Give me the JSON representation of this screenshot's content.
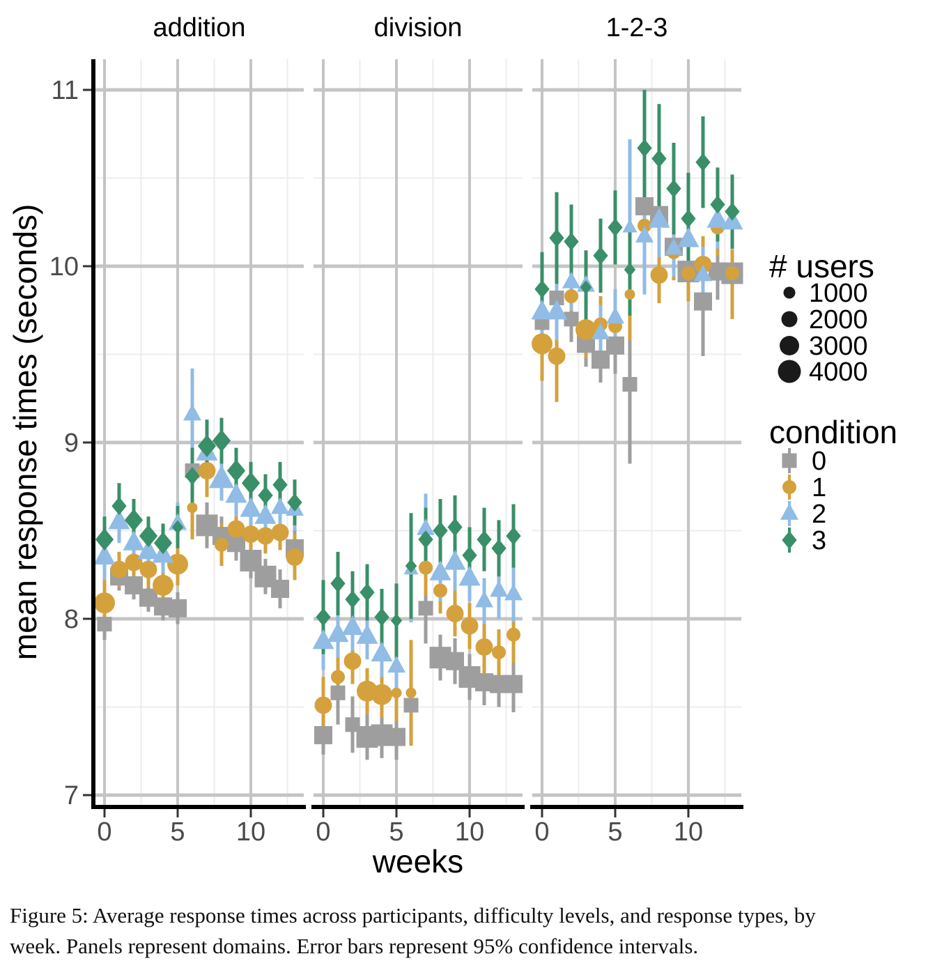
{
  "figure": {
    "caption_line1": "Figure 5: Average response times across participants, difficulty levels, and response types, by",
    "caption_line2": "week. Panels represent domains. Error bars represent 95% confidence intervals."
  },
  "chart_data": {
    "type": "scatter",
    "title": "",
    "xlabel": "weeks",
    "ylabel": "mean response times (seconds)",
    "facets": [
      "addition",
      "division",
      "1-2-3"
    ],
    "weeks": [
      0,
      1,
      2,
      3,
      4,
      5,
      6,
      7,
      8,
      9,
      10,
      11,
      12,
      13
    ],
    "x_ticks": [
      0,
      5,
      10
    ],
    "y_ticks": [
      7,
      8,
      9,
      10,
      11
    ],
    "y_minor_ticks": [
      7.5,
      8.5,
      9.5,
      10.5
    ],
    "x_minor_ticks": [
      2.5,
      7.5,
      12.5
    ],
    "ylim": [
      6.95,
      11.25
    ],
    "xlim": [
      -0.7,
      13.6
    ],
    "grid": "major and minor, light gray on white",
    "legend_position": "right",
    "size_legend": {
      "title": "# users",
      "values": [
        1000,
        2000,
        3000,
        4000
      ]
    },
    "condition_legend": {
      "title": "condition",
      "items": [
        {
          "label": "0",
          "shape": "square",
          "color": "#9E9E9E"
        },
        {
          "label": "1",
          "shape": "circle",
          "color": "#D4A13C"
        },
        {
          "label": "2",
          "shape": "triangle",
          "color": "#90BCE5"
        },
        {
          "label": "3",
          "shape": "diamond",
          "color": "#398F68"
        }
      ]
    },
    "colors": {
      "grid_major": "#C4C4C4",
      "grid_minor": "#ECECEC",
      "axis": "#000000",
      "tick": "#333333",
      "tick_label": "#4A4A4A",
      "text": "#000000"
    },
    "series": [
      {
        "facet": "addition",
        "condition": "0",
        "shape": "square",
        "color": "#9E9E9E",
        "values": [
          7.97,
          8.24,
          8.19,
          8.12,
          8.07,
          8.06,
          8.84,
          8.53,
          8.47,
          8.43,
          8.33,
          8.24,
          8.17,
          8.4
        ],
        "ci": [
          0.09,
          0.08,
          0.08,
          0.08,
          0.08,
          0.09,
          0.25,
          0.13,
          0.11,
          0.1,
          0.1,
          0.1,
          0.11,
          0.13
        ],
        "users": [
          2000,
          3000,
          3000,
          3000,
          3000,
          3000,
          2000,
          4000,
          3000,
          3000,
          4000,
          4000,
          3000,
          3000
        ]
      },
      {
        "facet": "addition",
        "condition": "1",
        "shape": "circle",
        "color": "#D4A13C",
        "values": [
          8.09,
          8.28,
          8.32,
          8.28,
          8.19,
          8.31,
          8.63,
          8.84,
          8.42,
          8.51,
          8.48,
          8.47,
          8.49,
          8.35
        ],
        "ci": [
          0.13,
          0.1,
          0.1,
          0.1,
          0.12,
          0.12,
          0.18,
          0.15,
          0.12,
          0.12,
          0.1,
          0.1,
          0.1,
          0.13
        ],
        "users": [
          4000,
          3000,
          3000,
          3000,
          4000,
          4000,
          1000,
          3000,
          2000,
          3000,
          3000,
          3000,
          3000,
          3000
        ]
      },
      {
        "facet": "addition",
        "condition": "2",
        "shape": "triangle",
        "color": "#90BCE5",
        "values": [
          8.35,
          8.55,
          8.43,
          8.38,
          8.36,
          8.54,
          9.16,
          8.94,
          8.79,
          8.7,
          8.62,
          8.58,
          8.63,
          8.62
        ],
        "ci": [
          0.13,
          0.12,
          0.1,
          0.1,
          0.1,
          0.12,
          0.26,
          0.15,
          0.12,
          0.12,
          0.1,
          0.1,
          0.12,
          0.12
        ],
        "users": [
          3000,
          3000,
          3000,
          3000,
          3000,
          2000,
          2000,
          3000,
          4000,
          3000,
          3000,
          3000,
          2000,
          2000
        ]
      },
      {
        "facet": "addition",
        "condition": "3",
        "shape": "diamond",
        "color": "#398F68",
        "values": [
          8.45,
          8.64,
          8.56,
          8.47,
          8.43,
          8.52,
          8.81,
          8.98,
          9.01,
          8.84,
          8.77,
          8.7,
          8.76,
          8.66
        ],
        "ci": [
          0.13,
          0.13,
          0.12,
          0.11,
          0.11,
          0.12,
          0.16,
          0.15,
          0.13,
          0.13,
          0.12,
          0.12,
          0.13,
          0.13
        ],
        "users": [
          3000,
          2000,
          3000,
          3000,
          3000,
          1000,
          2000,
          3000,
          3000,
          3000,
          3000,
          2000,
          2000,
          2000
        ]
      },
      {
        "facet": "division",
        "condition": "0",
        "shape": "square",
        "color": "#9E9E9E",
        "values": [
          7.34,
          7.58,
          7.4,
          7.33,
          7.34,
          7.33,
          7.51,
          8.06,
          7.78,
          7.76,
          7.67,
          7.64,
          7.63,
          7.63
        ],
        "ci": [
          0.11,
          0.18,
          0.16,
          0.13,
          0.13,
          0.13,
          0.13,
          0.2,
          0.13,
          0.13,
          0.13,
          0.13,
          0.13,
          0.16
        ],
        "users": [
          3000,
          2000,
          2000,
          4000,
          4000,
          3000,
          2000,
          2000,
          4000,
          3000,
          4000,
          3000,
          3000,
          3000
        ]
      },
      {
        "facet": "division",
        "condition": "1",
        "shape": "circle",
        "color": "#D4A13C",
        "values": [
          7.51,
          7.67,
          7.76,
          7.59,
          7.57,
          7.58,
          7.58,
          8.29,
          8.16,
          8.03,
          7.96,
          7.84,
          7.81,
          7.91
        ],
        "ci": [
          0.16,
          0.13,
          0.13,
          0.13,
          0.13,
          0.16,
          0.3,
          0.16,
          0.13,
          0.13,
          0.13,
          0.16,
          0.13,
          0.16
        ],
        "users": [
          3000,
          2000,
          3000,
          4000,
          4000,
          1000,
          1000,
          2000,
          2000,
          3000,
          3000,
          3000,
          2000,
          2000
        ]
      },
      {
        "facet": "division",
        "condition": "2",
        "shape": "triangle",
        "color": "#90BCE5",
        "values": [
          7.87,
          7.91,
          7.95,
          7.9,
          7.8,
          7.73,
          8.28,
          8.51,
          8.26,
          8.32,
          8.23,
          8.1,
          8.16,
          8.14
        ],
        "ci": [
          0.16,
          0.13,
          0.13,
          0.13,
          0.13,
          0.16,
          0.3,
          0.2,
          0.16,
          0.16,
          0.13,
          0.13,
          0.16,
          0.16
        ],
        "users": [
          3000,
          3000,
          3000,
          3000,
          3000,
          2000,
          1000,
          2000,
          3000,
          3000,
          3000,
          2000,
          2000,
          2000
        ]
      },
      {
        "facet": "division",
        "condition": "3",
        "shape": "diamond",
        "color": "#398F68",
        "values": [
          8.01,
          8.2,
          8.11,
          8.15,
          8.01,
          7.99,
          8.3,
          8.45,
          8.5,
          8.52,
          8.36,
          8.45,
          8.4,
          8.47
        ],
        "ci": [
          0.21,
          0.18,
          0.16,
          0.16,
          0.16,
          0.21,
          0.3,
          0.18,
          0.18,
          0.18,
          0.16,
          0.18,
          0.16,
          0.18
        ],
        "users": [
          2000,
          2000,
          2000,
          2000,
          2000,
          1000,
          1000,
          2000,
          2000,
          2000,
          2000,
          2000,
          2000,
          2000
        ]
      },
      {
        "facet": "1-2-3",
        "condition": "0",
        "shape": "square",
        "color": "#9E9E9E",
        "values": [
          9.68,
          9.82,
          9.7,
          9.56,
          9.47,
          9.55,
          9.33,
          10.34,
          10.29,
          10.11,
          9.97,
          9.8,
          9.97,
          9.96
        ],
        "ci": [
          0.13,
          0.13,
          0.13,
          0.13,
          0.13,
          0.16,
          0.45,
          0.16,
          0.16,
          0.16,
          0.13,
          0.31,
          0.16,
          0.13
        ],
        "users": [
          2000,
          2000,
          2000,
          3000,
          3000,
          3000,
          2000,
          3000,
          3000,
          3000,
          4000,
          3000,
          3000,
          4000
        ]
      },
      {
        "facet": "1-2-3",
        "condition": "1",
        "shape": "circle",
        "color": "#D4A13C",
        "values": [
          9.56,
          9.49,
          9.83,
          9.64,
          9.67,
          9.66,
          9.84,
          10.23,
          9.95,
          10.08,
          9.96,
          10.01,
          10.22,
          9.96
        ],
        "ci": [
          0.21,
          0.26,
          0.16,
          0.16,
          0.16,
          0.16,
          0.26,
          0.21,
          0.16,
          0.16,
          0.16,
          0.16,
          0.16,
          0.26
        ],
        "users": [
          4000,
          3000,
          2000,
          4000,
          2000,
          2000,
          1000,
          2000,
          3000,
          2000,
          2000,
          3000,
          2000,
          2000
        ]
      },
      {
        "facet": "1-2-3",
        "condition": "2",
        "shape": "triangle",
        "color": "#90BCE5",
        "values": [
          9.74,
          9.74,
          9.91,
          9.89,
          9.62,
          9.71,
          10.22,
          10.17,
          10.26,
          10.1,
          10.15,
          9.95,
          10.26,
          10.25
        ],
        "ci": [
          0.16,
          0.16,
          0.16,
          0.16,
          0.16,
          0.16,
          0.5,
          0.33,
          0.21,
          0.16,
          0.16,
          0.16,
          0.16,
          0.16
        ],
        "users": [
          3000,
          3000,
          2000,
          2000,
          2000,
          2000,
          1000,
          2000,
          3000,
          2000,
          3000,
          2000,
          3000,
          3000
        ]
      },
      {
        "facet": "1-2-3",
        "condition": "3",
        "shape": "diamond",
        "color": "#398F68",
        "values": [
          9.87,
          10.16,
          10.14,
          9.88,
          10.06,
          10.22,
          9.98,
          10.67,
          10.61,
          10.44,
          10.27,
          10.59,
          10.35,
          10.31
        ],
        "ci": [
          0.21,
          0.26,
          0.21,
          0.21,
          0.21,
          0.21,
          0.26,
          0.33,
          0.31,
          0.26,
          0.26,
          0.26,
          0.21,
          0.21
        ],
        "users": [
          2000,
          2000,
          2000,
          1000,
          2000,
          2000,
          1000,
          2000,
          2000,
          2000,
          2000,
          2000,
          2000,
          2000
        ]
      }
    ]
  }
}
